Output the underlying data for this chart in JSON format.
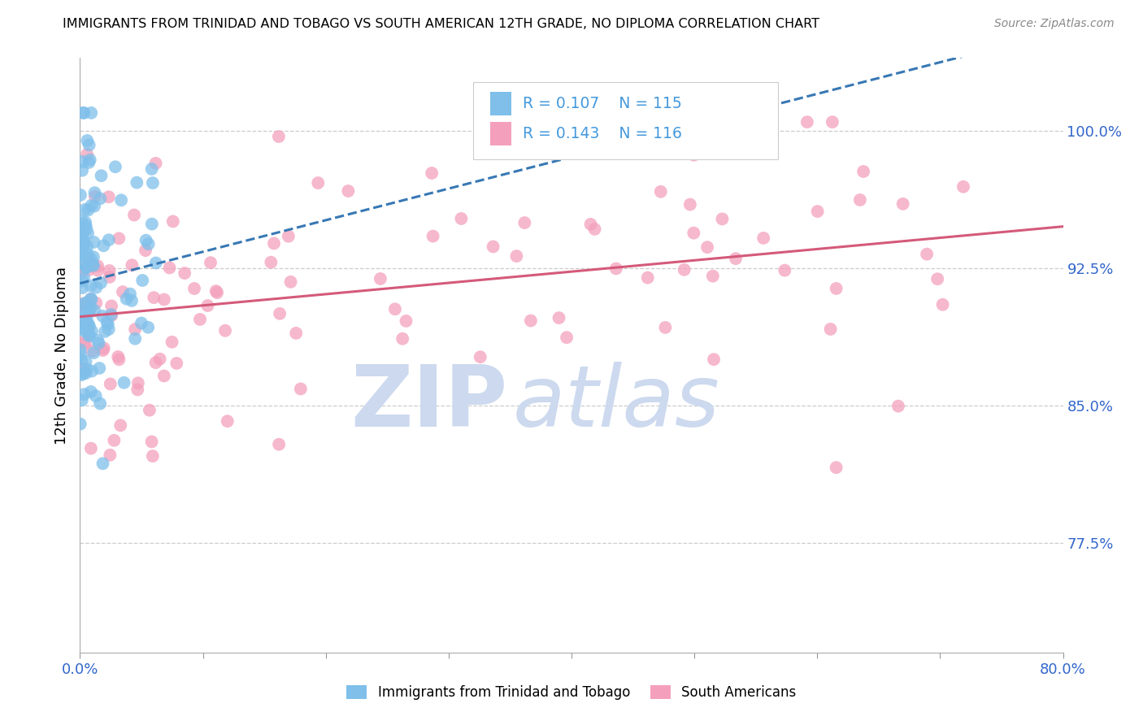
{
  "title": "IMMIGRANTS FROM TRINIDAD AND TOBAGO VS SOUTH AMERICAN 12TH GRADE, NO DIPLOMA CORRELATION CHART",
  "source": "Source: ZipAtlas.com",
  "ylabel_label": "12th Grade, No Diploma",
  "ytick_labels": [
    "77.5%",
    "85.0%",
    "92.5%",
    "100.0%"
  ],
  "ytick_values": [
    0.775,
    0.85,
    0.925,
    1.0
  ],
  "xlim": [
    0.0,
    0.8
  ],
  "ylim": [
    0.715,
    1.04
  ],
  "blue_color": "#7fbfea",
  "pink_color": "#f4a0bc",
  "blue_line_color": "#3878b4",
  "pink_line_color": "#d45a7a",
  "r_n_color": "#4499dd",
  "watermark_zip_color": "#ccd9ee",
  "watermark_atlas_color": "#ccd9ee",
  "legend_r1": "R = 0.107",
  "legend_n1": "N = 115",
  "legend_r2": "R = 0.143",
  "legend_n2": "N = 116",
  "bottom_legend_left": "Immigrants from Trinidad and Tobago",
  "bottom_legend_right": "South Americans"
}
